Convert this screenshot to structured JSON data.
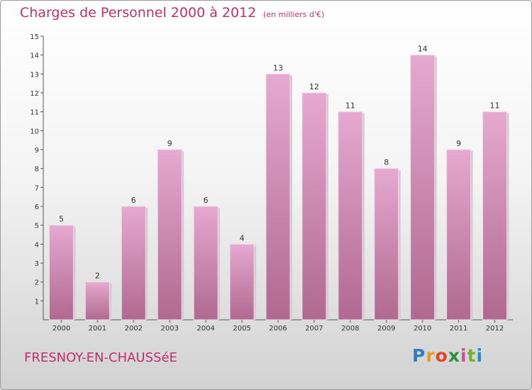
{
  "title": "Charges de Personnel 2000 à 2012",
  "subtitle": "(en milliers d'€)",
  "city": "FRESNOY-EN-CHAUSSéE",
  "logo": {
    "letters": [
      "P",
      "r",
      "o",
      "x",
      "i",
      "t",
      "i"
    ],
    "colors": [
      "#2c7fc4",
      "#e39b2a",
      "#e6432b",
      "#2c8f3b",
      "#d24a9a",
      "#6fb42c",
      "#1f8fd0"
    ]
  },
  "colors": {
    "bar_top": "#e6a9d0",
    "bar_bottom": "#b0698f",
    "accent": "#c0306e"
  },
  "chart_data": {
    "type": "bar",
    "categories": [
      "2000",
      "2001",
      "2002",
      "2003",
      "2004",
      "2005",
      "2006",
      "2007",
      "2008",
      "2009",
      "2010",
      "2011",
      "2012"
    ],
    "values": [
      5,
      2,
      6,
      9,
      6,
      4,
      13,
      12,
      11,
      8,
      14,
      9,
      11
    ],
    "yticks": [
      1,
      2,
      3,
      4,
      5,
      6,
      7,
      8,
      9,
      10,
      11,
      12,
      13,
      14,
      15
    ],
    "ylim": [
      0,
      15
    ],
    "grid": false
  }
}
